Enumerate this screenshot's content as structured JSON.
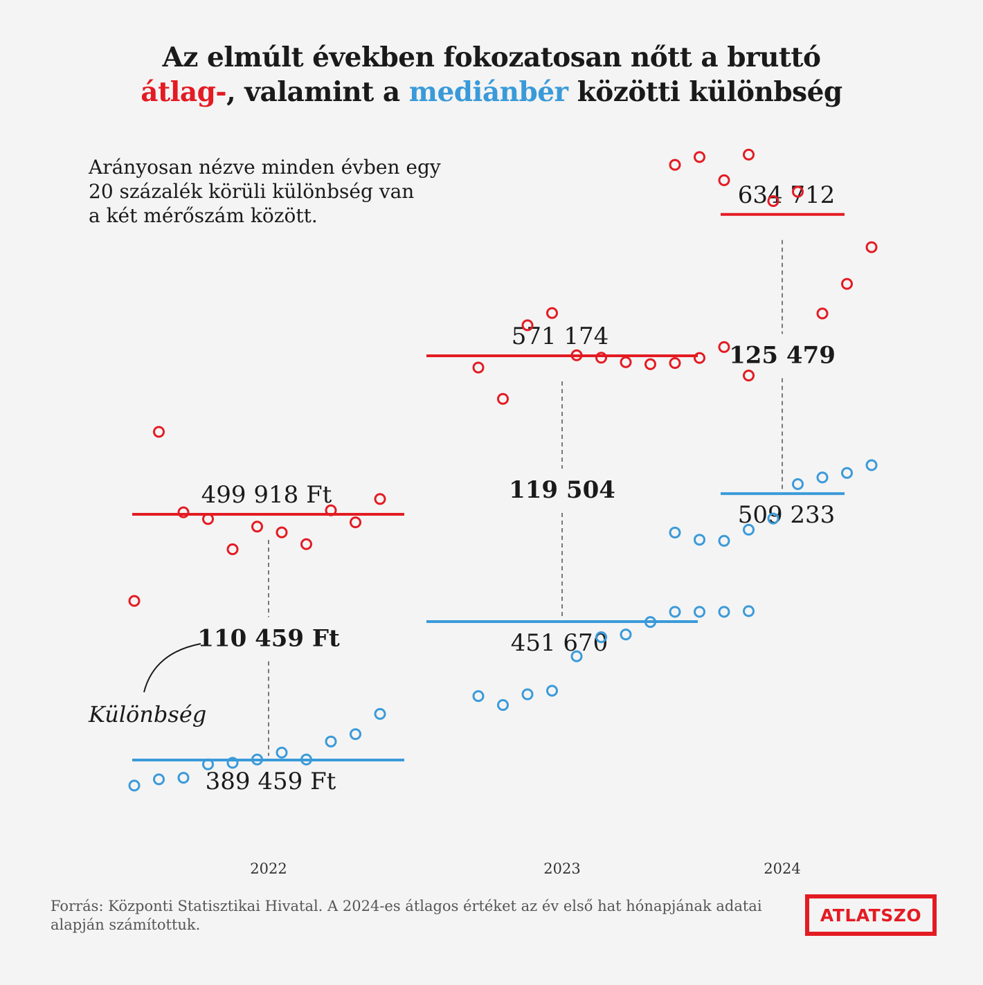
{
  "title": {
    "line1": "Az elmúlt években fokozatosan nőtt a bruttó",
    "avg_word": "átlag-",
    "line2_mid": ", valamint a",
    "median_word": "mediánbér",
    "line2_end": "közötti különbség"
  },
  "subtitle_lines": [
    "Arányosan nézve minden évben egy",
    "20 százalék körüli különbség van",
    "a két mérőszám között."
  ],
  "annotation": "Különbség",
  "source": "Forrás: Központi Statisztikai Hivatal. A 2024-es átlagos értéket  az év első hat hónapjának adatai alapján számítottuk.",
  "logo": "ATLATSZO",
  "colors": {
    "avg": "#e31b23",
    "median": "#3a9ad9",
    "diff_line": "#777777",
    "background": "#f4f4f4"
  },
  "chart_data": {
    "type": "scatter",
    "x_unit": "month index from January 2022",
    "years": [
      {
        "year": "2022",
        "avg_label": "499 918 Ft",
        "median_label": "389 459 Ft",
        "diff_label": "110 459 Ft",
        "avg_value": 499918,
        "median_value": 389459,
        "avg_monthly": [
          461000,
          537000,
          500800,
          497800,
          484200,
          494400,
          491800,
          486500,
          501700,
          496300,
          506800
        ],
        "median_monthly": [
          378000,
          380800,
          381500,
          387500,
          388200,
          389700,
          392800,
          389700,
          397800,
          401100,
          410200
        ]
      },
      {
        "year": "2023",
        "avg_label": "571 174",
        "median_label": "451 670",
        "diff_label": "119 504",
        "avg_value": 571174,
        "median_value": 451670,
        "avg_monthly": [
          565900,
          551800,
          584900,
          590400,
          571400,
          570300,
          568300,
          567400,
          567900,
          570200,
          575100,
          562300
        ],
        "median_monthly": [
          418200,
          414200,
          419000,
          420600,
          436100,
          444700,
          445900,
          451500,
          456100,
          456100,
          456100,
          456400
        ]
      },
      {
        "year": "2024",
        "avg_label": "634 712",
        "median_label": "509 233",
        "diff_label": "125 479",
        "avg_value": 634712,
        "median_value": 509233,
        "avg_monthly": [
          657000,
          660500,
          650100,
          661600,
          640700,
          644900,
          590200,
          603500,
          620000
        ],
        "median_monthly": [
          491700,
          488500,
          488000,
          493000,
          498000,
          513500,
          516500,
          518500,
          522000
        ]
      }
    ]
  }
}
